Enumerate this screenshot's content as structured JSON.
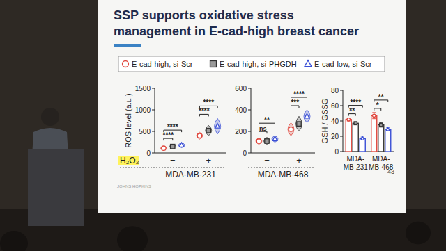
{
  "slide": {
    "title": "SSP supports oxidative stress\nmanagement in E-cad-high breast cancer",
    "row_label": "H₂O₂",
    "page": "43",
    "logo": "JOHNS HOPKINS"
  },
  "chart_data": [
    {
      "type": "dot",
      "y_label": "ROS level (a.u.)",
      "x_label": "MDA-MB-231",
      "categories": [
        "−",
        "+"
      ],
      "ylim": [
        0,
        1500
      ],
      "yticks": [
        0,
        500,
        1000,
        1500
      ],
      "legend": "top",
      "series": [
        {
          "name": "E-cad-high, si-Scr",
          "color": "#e0463c",
          "marker": "circle",
          "values": [
            110,
            400
          ],
          "errors": [
            40,
            80
          ]
        },
        {
          "name": "E-cad-high, si-PHGDH",
          "color": "#333333",
          "marker": "square",
          "values": [
            150,
            520
          ],
          "errors": [
            50,
            120
          ]
        },
        {
          "name": "E-cad-low, si-Scr",
          "color": "#3a4fd6",
          "marker": "triangle",
          "values": [
            180,
            620
          ],
          "errors": [
            60,
            180
          ]
        }
      ],
      "annotations": [
        {
          "text": "****",
          "category": 0,
          "pair": [
            0,
            1
          ]
        },
        {
          "text": "****",
          "category": 0,
          "pair": [
            0,
            2
          ]
        },
        {
          "text": "****",
          "category": 1,
          "pair": [
            0,
            1
          ]
        },
        {
          "text": "****",
          "category": 1,
          "pair": [
            0,
            2
          ]
        }
      ]
    },
    {
      "type": "dot",
      "y_label": "",
      "x_label": "MDA-MB-468",
      "categories": [
        "−",
        "+"
      ],
      "ylim": [
        0,
        600
      ],
      "yticks": [
        0,
        200,
        400,
        600
      ],
      "series": [
        {
          "name": "E-cad-high, si-Scr",
          "color": "#e0463c",
          "marker": "circle",
          "values": [
            110,
            220
          ],
          "errors": [
            30,
            60
          ]
        },
        {
          "name": "E-cad-high, si-PHGDH",
          "color": "#333333",
          "marker": "square",
          "values": [
            110,
            270
          ],
          "errors": [
            35,
            70
          ]
        },
        {
          "name": "E-cad-low, si-Scr",
          "color": "#3a4fd6",
          "marker": "triangle",
          "values": [
            130,
            340
          ],
          "errors": [
            30,
            60
          ]
        }
      ],
      "annotations": [
        {
          "text": "ns",
          "category": 0,
          "pair": [
            0,
            1
          ]
        },
        {
          "text": "**",
          "category": 0,
          "pair": [
            0,
            2
          ]
        },
        {
          "text": "***",
          "category": 1,
          "pair": [
            0,
            1
          ]
        },
        {
          "text": "****",
          "category": 1,
          "pair": [
            0,
            2
          ]
        }
      ]
    },
    {
      "type": "bar",
      "y_label": "GSH / GSSG",
      "categories": [
        "MDA-MB-231",
        "MDA-MB-468"
      ],
      "ylim": [
        0,
        80
      ],
      "yticks": [
        0,
        20,
        40,
        60,
        80
      ],
      "series": [
        {
          "name": "E-cad-high, si-Scr",
          "color": "#e0463c",
          "marker": "circle",
          "values": [
            42,
            47
          ],
          "errors": [
            2,
            4
          ]
        },
        {
          "name": "E-cad-high, si-PHGDH",
          "color": "#333333",
          "marker": "square",
          "values": [
            37,
            35
          ],
          "errors": [
            2,
            3
          ]
        },
        {
          "name": "E-cad-low, si-Scr",
          "color": "#3a4fd6",
          "marker": "triangle",
          "values": [
            17,
            29
          ],
          "errors": [
            2,
            2
          ]
        }
      ],
      "annotations": [
        {
          "text": "**",
          "category": 0,
          "pair": [
            0,
            1
          ]
        },
        {
          "text": "****",
          "category": 0,
          "pair": [
            0,
            2
          ]
        },
        {
          "text": "*",
          "category": 1,
          "pair": [
            0,
            1
          ]
        },
        {
          "text": "**",
          "category": 1,
          "pair": [
            0,
            2
          ]
        }
      ]
    }
  ]
}
